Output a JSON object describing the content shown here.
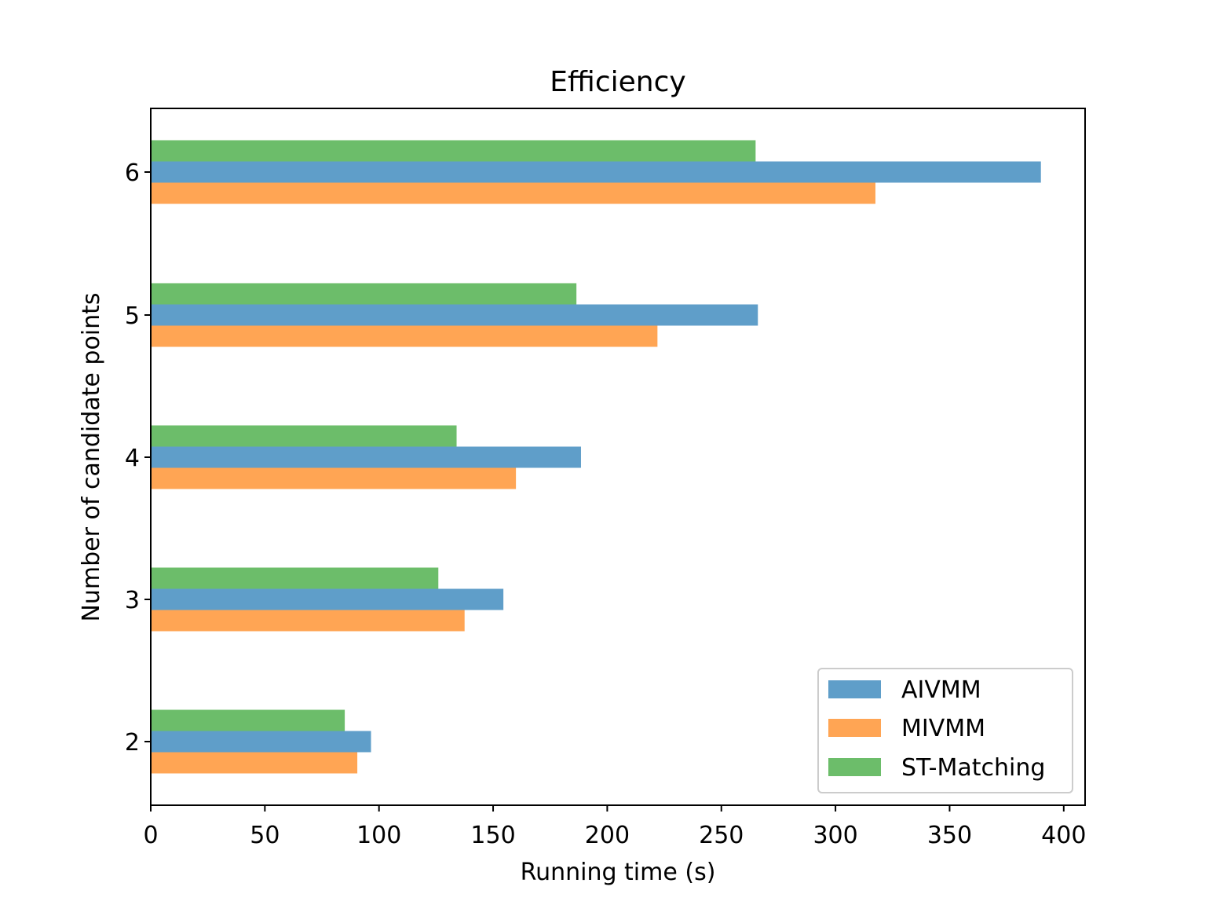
{
  "chart_data": {
    "type": "bar",
    "orientation": "horizontal",
    "title": "Efficiency",
    "xlabel": "Running time (s)",
    "ylabel": "Number of candidate points",
    "categories": [
      "2",
      "3",
      "4",
      "5",
      "6"
    ],
    "xlim": [
      0,
      410
    ],
    "xticks": [
      "0",
      "50",
      "100",
      "150",
      "200",
      "250",
      "300",
      "350",
      "400"
    ],
    "series": [
      {
        "name": "AIVMM",
        "color": "#5f9ec9",
        "values": [
          96.5,
          154.5,
          188.5,
          266,
          390
        ]
      },
      {
        "name": "MIVMM",
        "color": "#ffa554",
        "values": [
          90.5,
          137.5,
          160,
          222,
          317.5
        ]
      },
      {
        "name": "ST-Matching",
        "color": "#6cbd6a",
        "values": [
          85,
          126,
          134,
          186.5,
          265
        ]
      }
    ],
    "legend_position": "lower-right",
    "grid": false
  }
}
